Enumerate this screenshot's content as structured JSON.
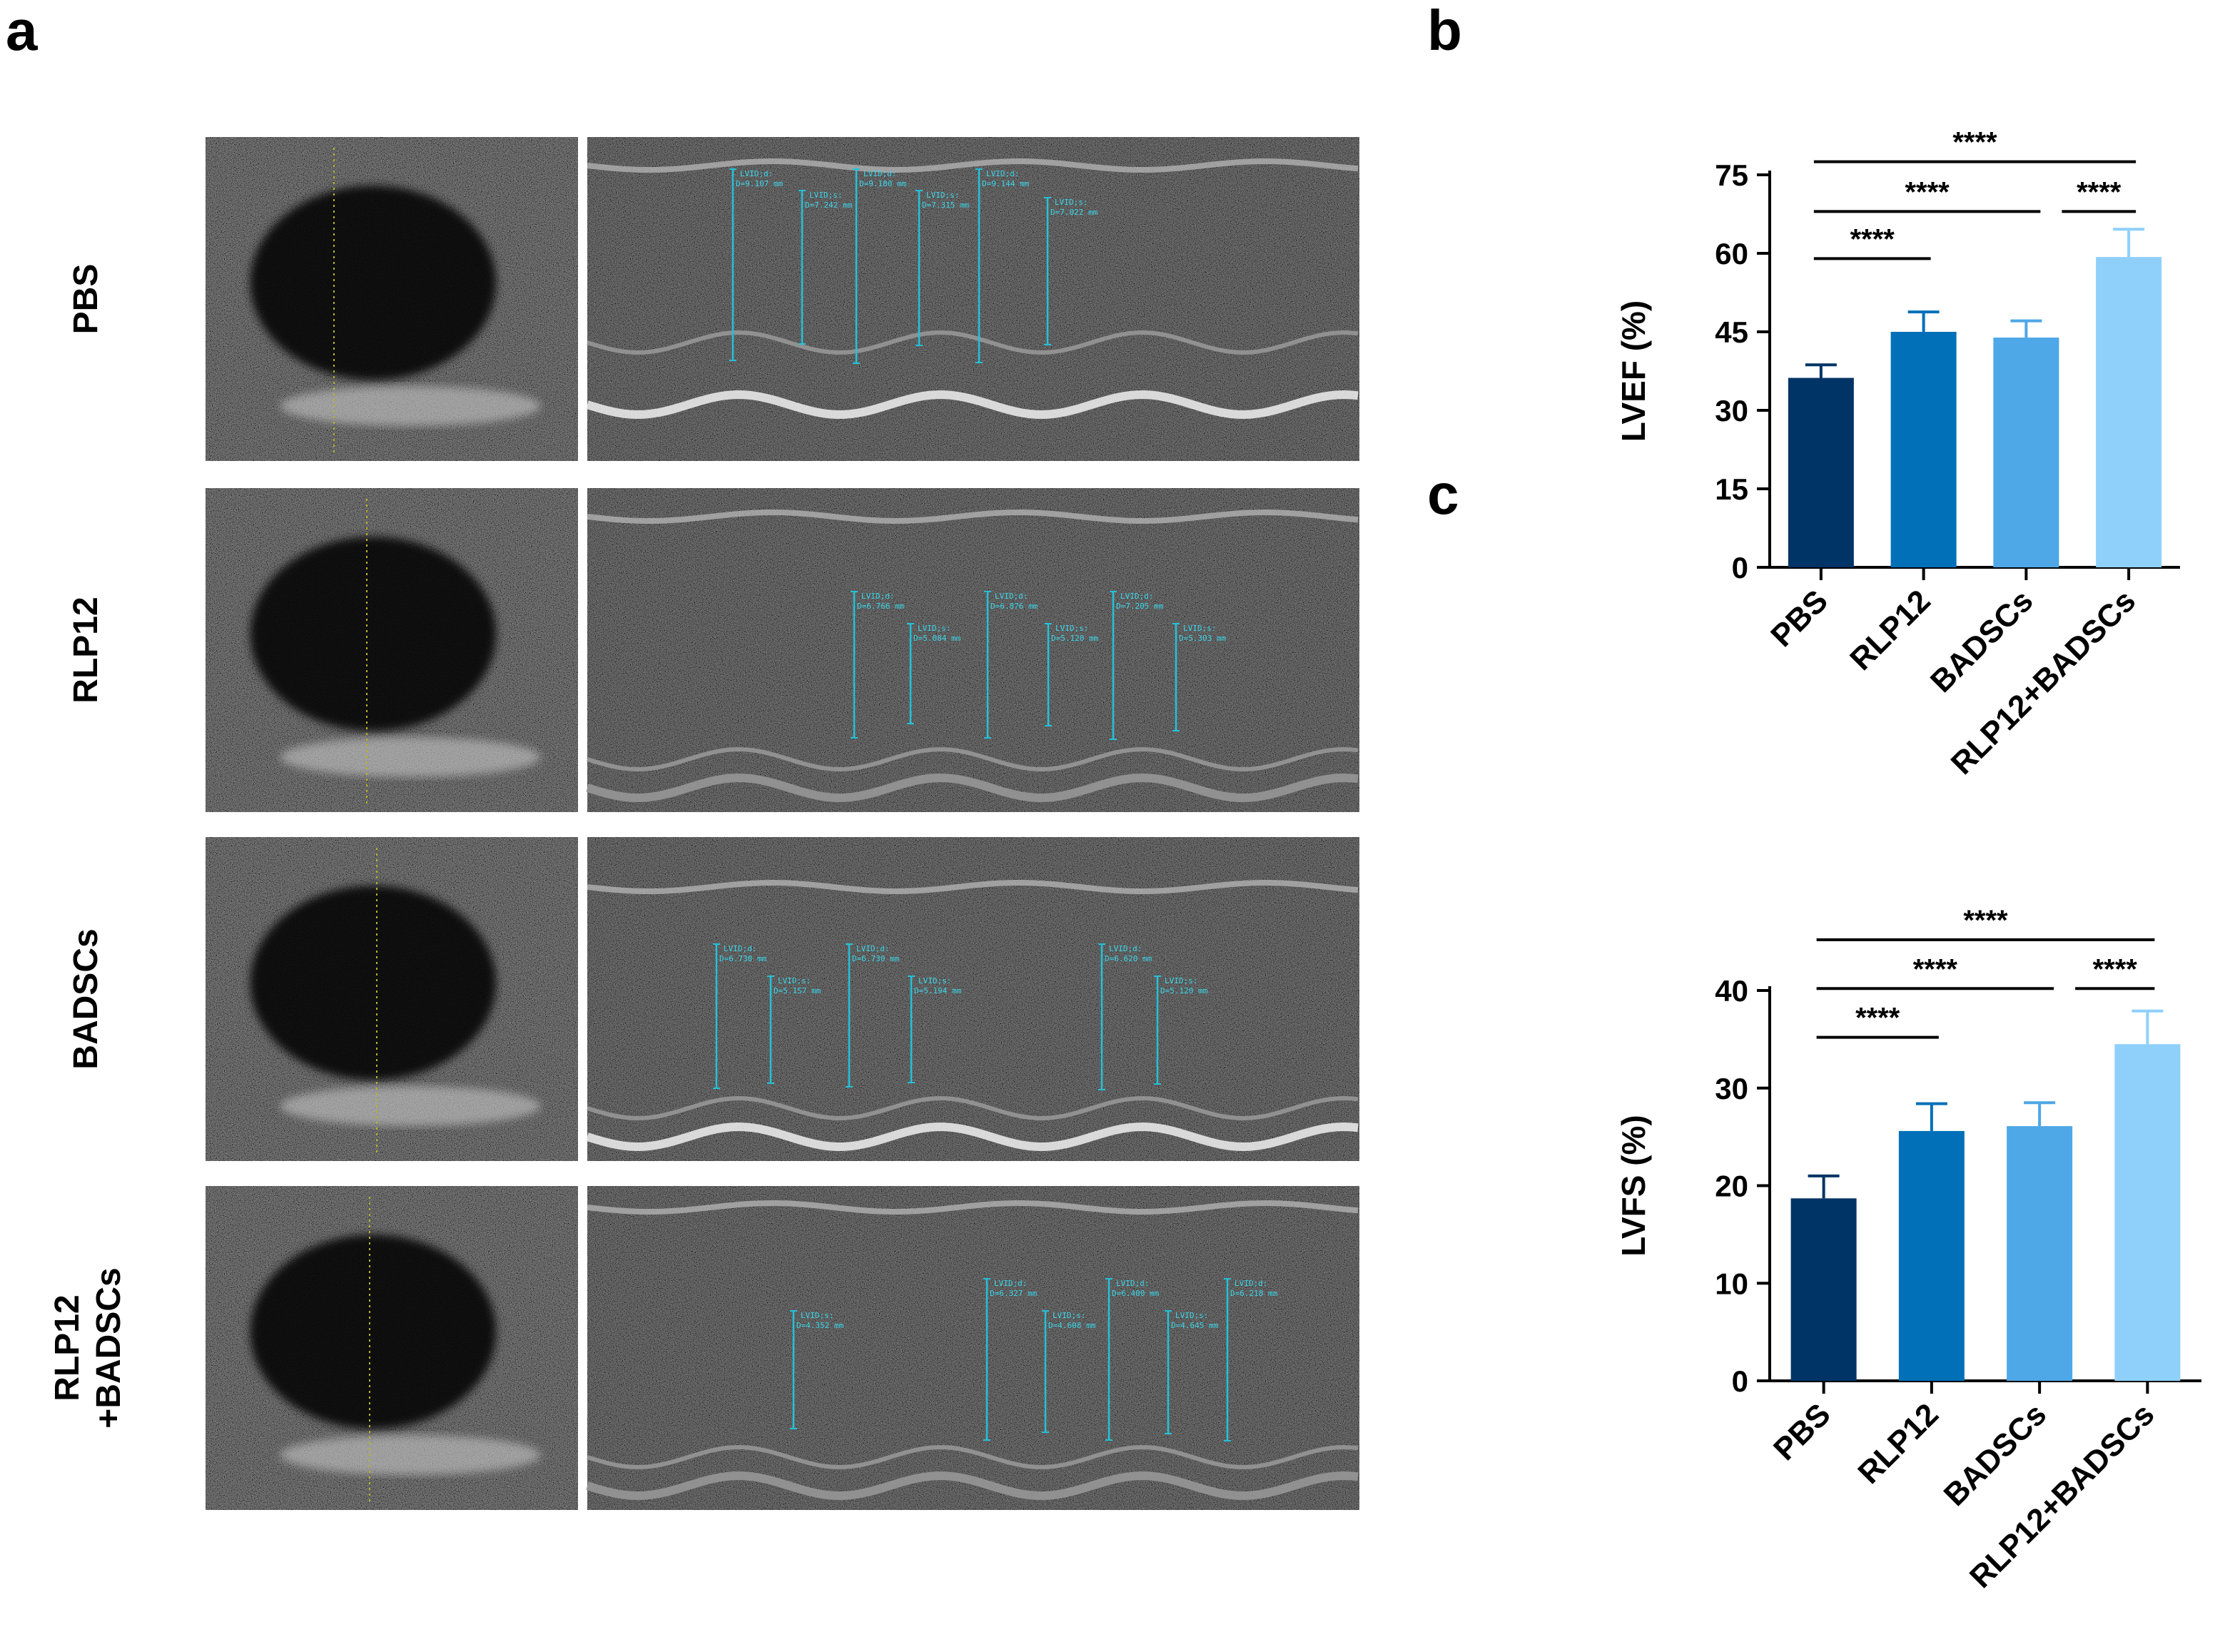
{
  "panels": {
    "a": {
      "letter": "a",
      "rows": [
        {
          "label_lines": [
            "PBS"
          ],
          "measurements": [
            {
              "label": "LVID;d:",
              "value": "D=9.107 mm"
            },
            {
              "label": "LVID;s:",
              "value": "D=7.242 mm"
            },
            {
              "label": "LVID;d:",
              "value": "D=9.180 mm"
            },
            {
              "label": "LVID;s:",
              "value": "D=7.315 mm"
            },
            {
              "label": "LVID;d:",
              "value": "D=9.144 mm"
            },
            {
              "label": "LVID;s:",
              "value": "D=7.022 mm"
            }
          ]
        },
        {
          "label_lines": [
            "RLP12"
          ],
          "measurements": [
            {
              "label": "LVID;d:",
              "value": "D=6.766 mm"
            },
            {
              "label": "LVID;s:",
              "value": "D=5.084 mm"
            },
            {
              "label": "LVID;d:",
              "value": "D=6.876 mm"
            },
            {
              "label": "LVID;s:",
              "value": "D=5.120 mm"
            },
            {
              "label": "LVID;d:",
              "value": "D=7.205 mm"
            },
            {
              "label": "LVID;s:",
              "value": "D=5.303 mm"
            }
          ]
        },
        {
          "label_lines": [
            "BADSCs"
          ],
          "measurements": [
            {
              "label": "LVID;d:",
              "value": "D=6.730 mm"
            },
            {
              "label": "LVID;s:",
              "value": "D=5.157 mm"
            },
            {
              "label": "LVID;d:",
              "value": "D=6.730 mm"
            },
            {
              "label": "LVID;s:",
              "value": "D=5.194 mm"
            },
            {
              "label": "LVID;d:",
              "value": "D=6.620 mm"
            },
            {
              "label": "LVID;s:",
              "value": "D=5.120 mm"
            }
          ]
        },
        {
          "label_lines": [
            "RLP12",
            "+BADSCs"
          ],
          "measurements": [
            {
              "label": "LVID;s:",
              "value": "D=4.352 mm"
            },
            {
              "label": "LVID;d:",
              "value": "D=6.327 mm"
            },
            {
              "label": "LVID;s:",
              "value": "D=4.608 mm"
            },
            {
              "label": "LVID;d:",
              "value": "D=6.400 mm"
            },
            {
              "label": "LVID;s:",
              "value": "D=4.645 mm"
            },
            {
              "label": "LVID;d:",
              "value": "D=6.218 mm"
            }
          ]
        }
      ]
    },
    "b": {
      "letter": "b"
    },
    "c": {
      "letter": "c"
    }
  },
  "colors": {
    "PBS": "#003466",
    "RLP12": "#0170b8",
    "BADSCs": "#4ea7e6",
    "RLP12+BADSCs": "#8fd0fb",
    "measure_line": "#24c1d8",
    "measure_text": "#3ad6ea",
    "cursor": "#b7b12a"
  },
  "chart_data": [
    {
      "type": "bar",
      "panel": "b",
      "categories": [
        "PBS",
        "RLP12",
        "BADSCs",
        "RLP12+BADSCs"
      ],
      "values": [
        36.2,
        45.0,
        43.9,
        59.3
      ],
      "errors": [
        2.5,
        3.8,
        3.2,
        5.3
      ],
      "ylabel": "LVEF (%)",
      "ylim": [
        0,
        75
      ],
      "yticks": [
        0,
        15,
        30,
        45,
        60,
        75
      ],
      "significance": [
        {
          "from": 0,
          "to": 1,
          "label": "****",
          "y": 59
        },
        {
          "from": 0,
          "to": 2,
          "label": "****",
          "y": 68
        },
        {
          "from": 2,
          "to": 3,
          "label": "****",
          "y": 68
        },
        {
          "from": 0,
          "to": 3,
          "label": "****",
          "y": 77.5
        }
      ]
    },
    {
      "type": "bar",
      "panel": "c",
      "categories": [
        "PBS",
        "RLP12",
        "BADSCs",
        "RLP12+BADSCs"
      ],
      "values": [
        18.7,
        25.6,
        26.1,
        34.5
      ],
      "errors": [
        2.3,
        2.8,
        2.4,
        3.4
      ],
      "ylabel": "LVFS (%)",
      "ylim": [
        0,
        40
      ],
      "yticks": [
        0,
        10,
        20,
        30,
        40
      ],
      "significance": [
        {
          "from": 0,
          "to": 1,
          "label": "****",
          "y": 35.2
        },
        {
          "from": 0,
          "to": 2,
          "label": "****",
          "y": 40.2
        },
        {
          "from": 2,
          "to": 3,
          "label": "****",
          "y": 40.2
        },
        {
          "from": 0,
          "to": 3,
          "label": "****",
          "y": 45.2
        }
      ]
    }
  ]
}
